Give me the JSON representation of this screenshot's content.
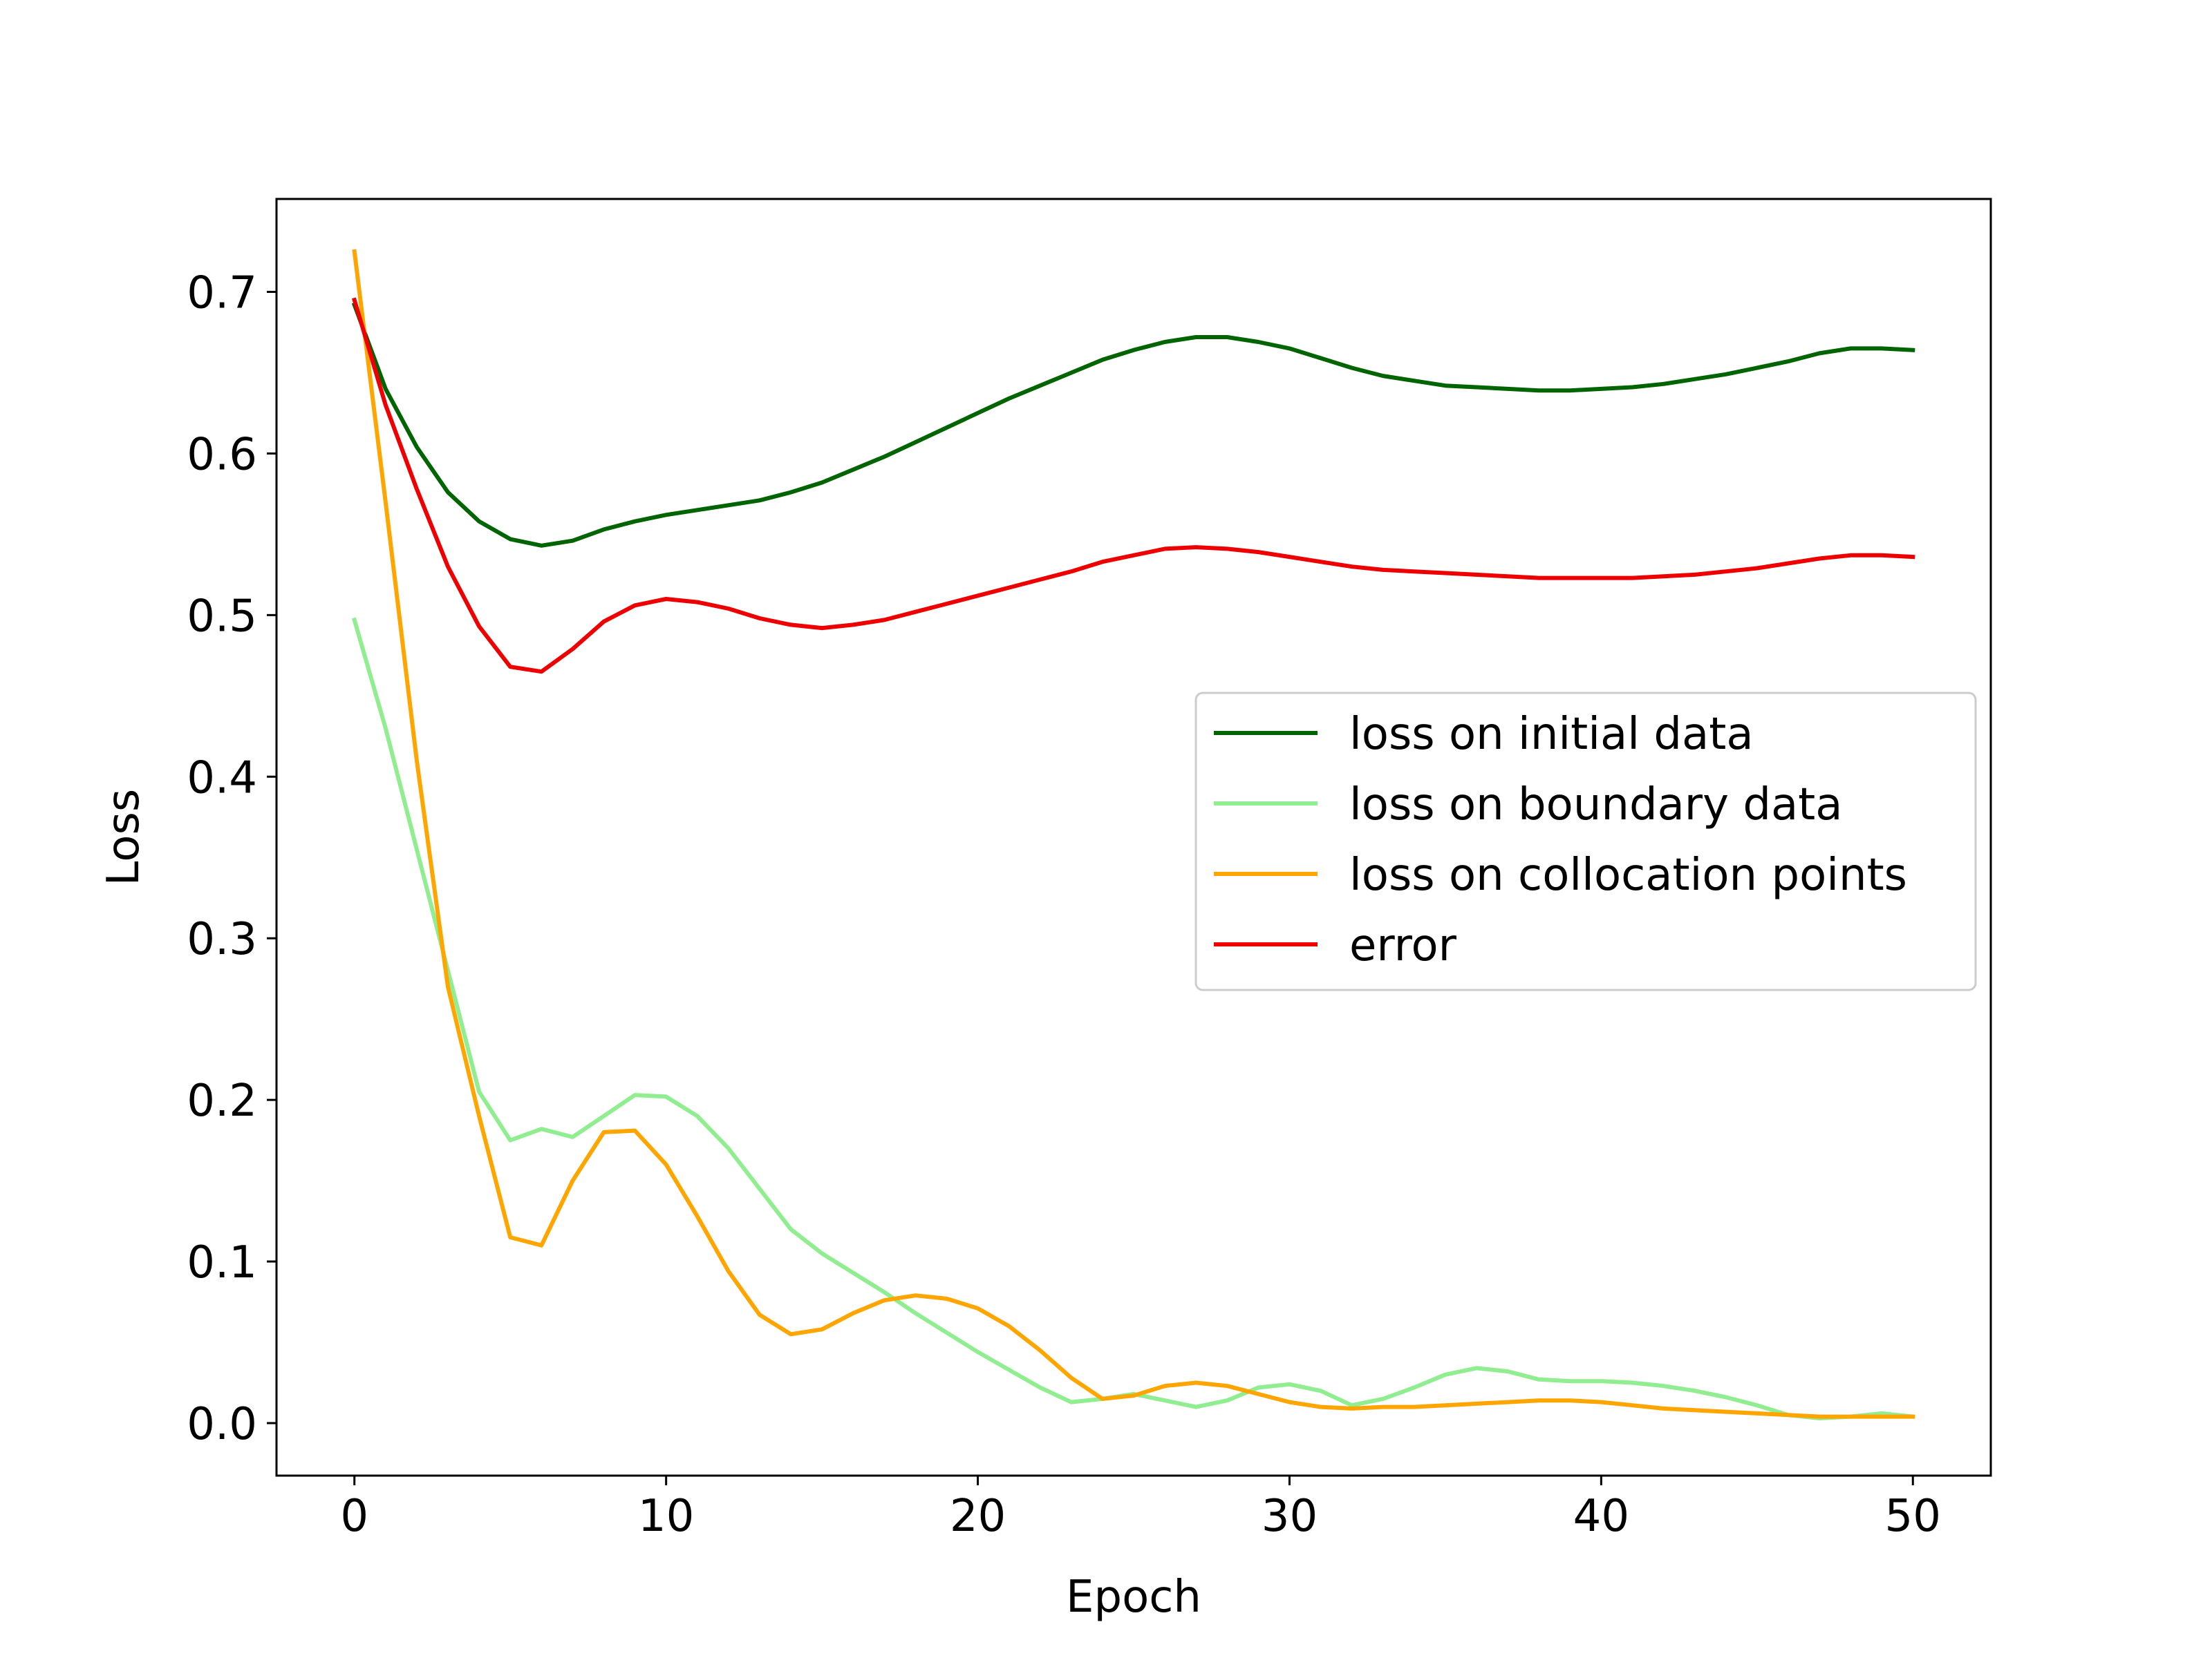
{
  "chart_data": {
    "type": "line",
    "title": "",
    "xlabel": "Epoch",
    "ylabel": "Loss",
    "xlim": [
      -2.5,
      52.5
    ],
    "ylim": [
      -0.0325,
      0.7575
    ],
    "xticks": [
      0,
      10,
      20,
      30,
      40,
      50
    ],
    "yticks": [
      0.0,
      0.1,
      0.2,
      0.3,
      0.4,
      0.5,
      0.6,
      0.7
    ],
    "xtick_labels": [
      "0",
      "10",
      "20",
      "30",
      "40",
      "50"
    ],
    "ytick_labels": [
      "0.0",
      "0.1",
      "0.2",
      "0.3",
      "0.4",
      "0.5",
      "0.6",
      "0.7"
    ],
    "grid": false,
    "legend_position": "center-right",
    "x": [
      0,
      1,
      2,
      3,
      4,
      5,
      6,
      7,
      8,
      9,
      10,
      11,
      12,
      13,
      14,
      15,
      16,
      17,
      18,
      19,
      20,
      21,
      22,
      23,
      24,
      25,
      26,
      27,
      28,
      29,
      30,
      31,
      32,
      33,
      34,
      35,
      36,
      37,
      38,
      39,
      40,
      41,
      42,
      43,
      44,
      45,
      46,
      47,
      48,
      49,
      50
    ],
    "series": [
      {
        "name": "loss on initial data",
        "color": "#006400",
        "values": [
          0.692,
          0.64,
          0.604,
          0.576,
          0.558,
          0.547,
          0.543,
          0.546,
          0.553,
          0.558,
          0.562,
          0.565,
          0.568,
          0.571,
          0.576,
          0.582,
          0.59,
          0.598,
          0.607,
          0.616,
          0.625,
          0.634,
          0.642,
          0.65,
          0.658,
          0.664,
          0.669,
          0.672,
          0.672,
          0.669,
          0.665,
          0.659,
          0.653,
          0.648,
          0.645,
          0.642,
          0.641,
          0.64,
          0.639,
          0.639,
          0.64,
          0.641,
          0.643,
          0.646,
          0.649,
          0.653,
          0.657,
          0.662,
          0.665,
          0.665,
          0.664
        ]
      },
      {
        "name": "loss on boundary data",
        "color": "#90EE90",
        "values": [
          0.497,
          0.43,
          0.355,
          0.28,
          0.205,
          0.175,
          0.182,
          0.177,
          0.19,
          0.203,
          0.202,
          0.19,
          0.17,
          0.145,
          0.12,
          0.105,
          0.093,
          0.081,
          0.068,
          0.056,
          0.044,
          0.033,
          0.022,
          0.013,
          0.015,
          0.018,
          0.014,
          0.01,
          0.014,
          0.022,
          0.024,
          0.02,
          0.011,
          0.015,
          0.022,
          0.03,
          0.034,
          0.032,
          0.027,
          0.026,
          0.026,
          0.025,
          0.023,
          0.02,
          0.016,
          0.011,
          0.005,
          0.003,
          0.004,
          0.006,
          0.004
        ]
      },
      {
        "name": "loss on collocation points",
        "color": "#FFA500",
        "values": [
          0.725,
          0.57,
          0.41,
          0.27,
          0.19,
          0.115,
          0.11,
          0.15,
          0.18,
          0.181,
          0.16,
          0.128,
          0.094,
          0.067,
          0.055,
          0.058,
          0.068,
          0.076,
          0.079,
          0.077,
          0.071,
          0.06,
          0.045,
          0.028,
          0.015,
          0.017,
          0.023,
          0.025,
          0.023,
          0.018,
          0.013,
          0.01,
          0.009,
          0.01,
          0.01,
          0.011,
          0.012,
          0.013,
          0.014,
          0.014,
          0.013,
          0.011,
          0.009,
          0.008,
          0.007,
          0.006,
          0.005,
          0.004,
          0.004,
          0.004,
          0.004
        ]
      },
      {
        "name": "error",
        "color": "#EE0000",
        "values": [
          0.695,
          0.63,
          0.578,
          0.53,
          0.493,
          0.468,
          0.465,
          0.479,
          0.496,
          0.506,
          0.51,
          0.508,
          0.504,
          0.498,
          0.494,
          0.492,
          0.494,
          0.497,
          0.502,
          0.507,
          0.512,
          0.517,
          0.522,
          0.527,
          0.533,
          0.537,
          0.541,
          0.542,
          0.541,
          0.539,
          0.536,
          0.533,
          0.53,
          0.528,
          0.527,
          0.526,
          0.525,
          0.524,
          0.523,
          0.523,
          0.523,
          0.523,
          0.524,
          0.525,
          0.527,
          0.529,
          0.532,
          0.535,
          0.537,
          0.537,
          0.536
        ]
      }
    ]
  }
}
